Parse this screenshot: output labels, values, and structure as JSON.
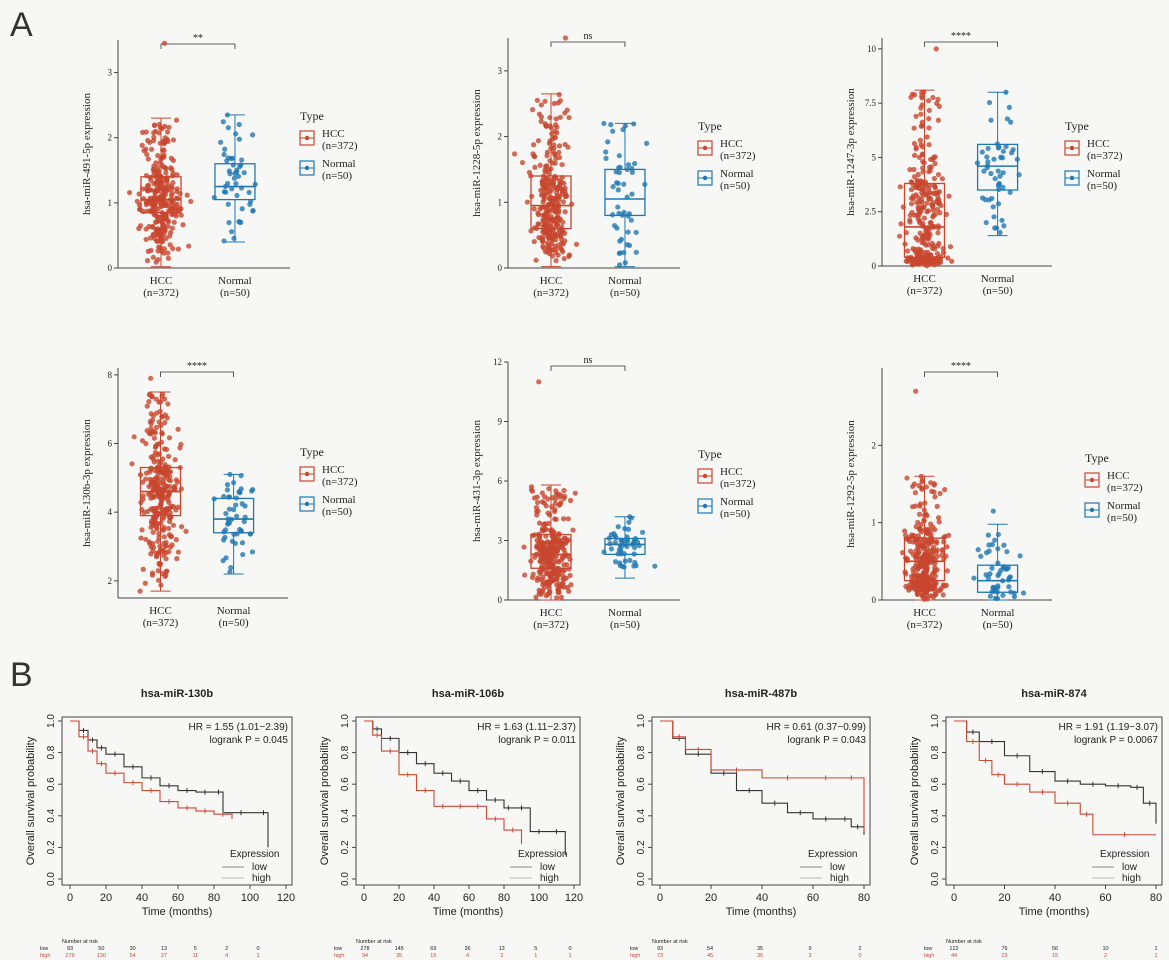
{
  "panels": {
    "a_label": "A",
    "b_label": "B"
  },
  "colors": {
    "hcc": "#c8462e",
    "normal": "#1f78b4",
    "low_curve": "#333333",
    "high_curve": "#cc4a36",
    "axis": "#444444"
  },
  "boxplot_common": {
    "legend_title": "Type",
    "legend_items": [
      {
        "label": "HCC",
        "n": "(n=372)"
      },
      {
        "label": "Normal",
        "n": "(n=50)"
      }
    ],
    "groups": [
      {
        "name": "HCC",
        "n": "(n=372)"
      },
      {
        "name": "Normal",
        "n": "(n=50)"
      }
    ]
  },
  "chart_data": [
    {
      "type": "box",
      "ylabel": "hsa-miR-491-5p expression",
      "ylim": [
        0,
        3.5
      ],
      "yticks": [
        0,
        1,
        2,
        3
      ],
      "significance": "**",
      "series": [
        {
          "name": "HCC",
          "q1": 0.85,
          "median": 1.05,
          "q3": 1.4,
          "whisker_low": 0.02,
          "whisker_high": 2.3,
          "max": 3.45
        },
        {
          "name": "Normal",
          "q1": 1.05,
          "median": 1.25,
          "q3": 1.6,
          "whisker_low": 0.4,
          "whisker_high": 2.35,
          "max": 2.35
        }
      ]
    },
    {
      "type": "box",
      "ylabel": "hsa-miR-1228-5p expression",
      "ylim": [
        0,
        3.5
      ],
      "yticks": [
        0,
        1,
        2,
        3
      ],
      "significance": "ns",
      "series": [
        {
          "name": "HCC",
          "q1": 0.6,
          "median": 0.95,
          "q3": 1.4,
          "whisker_low": 0.02,
          "whisker_high": 2.65,
          "max": 3.5
        },
        {
          "name": "Normal",
          "q1": 0.8,
          "median": 1.05,
          "q3": 1.5,
          "whisker_low": 0.02,
          "whisker_high": 2.2,
          "max": 2.2
        }
      ]
    },
    {
      "type": "box",
      "ylabel": "hsa-miR-1247-3p expression",
      "ylim": [
        0,
        10.5
      ],
      "yticks": [
        0.0,
        2.5,
        5.0,
        7.5,
        10.0
      ],
      "significance": "****",
      "series": [
        {
          "name": "HCC",
          "q1": 0.4,
          "median": 1.8,
          "q3": 3.8,
          "whisker_low": 0.0,
          "whisker_high": 8.1,
          "max": 10.0
        },
        {
          "name": "Normal",
          "q1": 3.5,
          "median": 4.6,
          "q3": 5.6,
          "whisker_low": 1.4,
          "whisker_high": 8.0,
          "max": 8.0
        }
      ]
    },
    {
      "type": "box",
      "ylabel": "hsa-miR-130b-3p expression",
      "ylim": [
        1.5,
        8.2
      ],
      "yticks": [
        2,
        4,
        6,
        8
      ],
      "significance": "****",
      "series": [
        {
          "name": "HCC",
          "q1": 3.9,
          "median": 4.6,
          "q3": 5.3,
          "whisker_low": 1.7,
          "whisker_high": 7.5,
          "max": 7.9
        },
        {
          "name": "Normal",
          "q1": 3.4,
          "median": 3.8,
          "q3": 4.4,
          "whisker_low": 2.2,
          "whisker_high": 5.1,
          "max": 5.1
        }
      ]
    },
    {
      "type": "box",
      "ylabel": "hsa-miR-431-3p expression",
      "ylim": [
        0,
        12
      ],
      "yticks": [
        0,
        3,
        6,
        9,
        12
      ],
      "significance": "ns",
      "series": [
        {
          "name": "HCC",
          "q1": 1.6,
          "median": 2.3,
          "q3": 3.3,
          "whisker_low": 0.0,
          "whisker_high": 5.8,
          "max": 11.0
        },
        {
          "name": "Normal",
          "q1": 2.3,
          "median": 2.8,
          "q3": 3.1,
          "whisker_low": 1.1,
          "whisker_high": 4.2,
          "max": 4.2
        }
      ]
    },
    {
      "type": "box",
      "ylabel": "hsa-miR-1292-5p expression",
      "ylim": [
        0,
        3
      ],
      "yticks": [
        0,
        1,
        2
      ],
      "significance": "****",
      "series": [
        {
          "name": "HCC",
          "q1": 0.25,
          "median": 0.5,
          "q3": 0.8,
          "whisker_low": 0.0,
          "whisker_high": 1.6,
          "max": 2.7
        },
        {
          "name": "Normal",
          "q1": 0.1,
          "median": 0.25,
          "q3": 0.45,
          "whisker_low": 0.0,
          "whisker_high": 0.98,
          "max": 1.15
        }
      ]
    },
    {
      "type": "line",
      "title": "hsa-miR-130b",
      "xlabel": "Time (months)",
      "ylabel": "Overall survival probability",
      "xlim": [
        0,
        120
      ],
      "xticks": [
        0,
        20,
        40,
        60,
        80,
        100,
        120
      ],
      "ylim": [
        0,
        1
      ],
      "yticks": [
        0.0,
        0.2,
        0.4,
        0.6,
        0.8,
        1.0
      ],
      "hr": "HR = 1.55 (1.01−2.39)",
      "logrank": "logrank P = 0.045",
      "legend_title": "Expression",
      "legend": [
        "low",
        "high"
      ],
      "series": [
        {
          "name": "low",
          "x": [
            0,
            5,
            10,
            15,
            20,
            30,
            40,
            50,
            60,
            70,
            80,
            85,
            105,
            110
          ],
          "y": [
            1.0,
            0.94,
            0.88,
            0.83,
            0.79,
            0.71,
            0.64,
            0.59,
            0.56,
            0.55,
            0.55,
            0.42,
            0.42,
            0.2
          ]
        },
        {
          "name": "high",
          "x": [
            0,
            5,
            10,
            15,
            20,
            30,
            40,
            50,
            60,
            70,
            80,
            90
          ],
          "y": [
            1.0,
            0.9,
            0.81,
            0.73,
            0.67,
            0.61,
            0.56,
            0.49,
            0.45,
            0.43,
            0.41,
            0.38
          ]
        }
      ],
      "risk_table": {
        "header": "Number at risk",
        "rows": [
          {
            "label": "low",
            "values": [
              "93",
              "50",
              "30",
              "13",
              "5",
              "2",
              "0"
            ]
          },
          {
            "label": "high",
            "values": [
              "279",
              "130",
              "54",
              "27",
              "11",
              "4",
              "1"
            ]
          }
        ]
      }
    },
    {
      "type": "line",
      "title": "hsa-miR-106b",
      "xlabel": "Time (months)",
      "ylabel": "Overall survival probability",
      "xlim": [
        0,
        120
      ],
      "xticks": [
        0,
        20,
        40,
        60,
        80,
        100,
        120
      ],
      "ylim": [
        0,
        1
      ],
      "yticks": [
        0.0,
        0.2,
        0.4,
        0.6,
        0.8,
        1.0
      ],
      "hr": "HR = 1.63 (1.11−2.37)",
      "logrank": "logrank P = 0.011",
      "legend_title": "Expression",
      "legend": [
        "low",
        "high"
      ],
      "series": [
        {
          "name": "low",
          "x": [
            0,
            5,
            10,
            20,
            30,
            40,
            50,
            60,
            70,
            80,
            85,
            95,
            105,
            115
          ],
          "y": [
            1.0,
            0.95,
            0.89,
            0.8,
            0.73,
            0.67,
            0.62,
            0.56,
            0.5,
            0.45,
            0.45,
            0.3,
            0.3,
            0.15
          ]
        },
        {
          "name": "high",
          "x": [
            0,
            5,
            10,
            20,
            30,
            40,
            50,
            60,
            70,
            80,
            90
          ],
          "y": [
            1.0,
            0.91,
            0.81,
            0.66,
            0.56,
            0.46,
            0.46,
            0.46,
            0.38,
            0.31,
            0.22
          ]
        }
      ],
      "risk_table": {
        "header": "Number at risk",
        "rows": [
          {
            "label": "low",
            "values": [
              "278",
              "145",
              "69",
              "36",
              "13",
              "5",
              "0"
            ]
          },
          {
            "label": "high",
            "values": [
              "94",
              "35",
              "15",
              "4",
              "3",
              "1",
              "1"
            ]
          }
        ]
      }
    },
    {
      "type": "line",
      "title": "hsa-miR-487b",
      "xlabel": "Time (months)",
      "ylabel": "Overall survival probability",
      "xlim": [
        0,
        80
      ],
      "xticks": [
        0,
        20,
        40,
        60,
        80
      ],
      "ylim": [
        0,
        1
      ],
      "yticks": [
        0.0,
        0.2,
        0.4,
        0.6,
        0.8,
        1.0
      ],
      "hr": "HR = 0.61 (0.37−0.99)",
      "logrank": "logrank P = 0.043",
      "legend_title": "Expression",
      "legend": [
        "low",
        "high"
      ],
      "series": [
        {
          "name": "low",
          "x": [
            0,
            5,
            10,
            20,
            30,
            40,
            50,
            60,
            70,
            75,
            80
          ],
          "y": [
            1.0,
            0.89,
            0.79,
            0.67,
            0.56,
            0.48,
            0.42,
            0.38,
            0.38,
            0.33,
            0.28
          ]
        },
        {
          "name": "high",
          "x": [
            0,
            5,
            10,
            20,
            40,
            60,
            70,
            80
          ],
          "y": [
            1.0,
            0.9,
            0.82,
            0.69,
            0.64,
            0.64,
            0.64,
            0.3
          ]
        }
      ],
      "risk_table": {
        "header": "Number at risk",
        "rows": [
          {
            "label": "low",
            "values": [
              "93",
              "54",
              "35",
              "9",
              "2"
            ]
          },
          {
            "label": "high",
            "values": [
              "73",
              "45",
              "36",
              "3",
              "0"
            ]
          }
        ]
      }
    },
    {
      "type": "line",
      "title": "hsa-miR-874",
      "xlabel": "Time (months)",
      "ylabel": "Overall survival probability",
      "xlim": [
        0,
        80
      ],
      "xticks": [
        0,
        20,
        40,
        60,
        80
      ],
      "ylim": [
        0,
        1
      ],
      "yticks": [
        0.0,
        0.2,
        0.4,
        0.6,
        0.8,
        1.0
      ],
      "hr": "HR = 1.91 (1.19−3.07)",
      "logrank": "logrank P = 0.0067",
      "legend_title": "Expression",
      "legend": [
        "low",
        "high"
      ],
      "series": [
        {
          "name": "low",
          "x": [
            0,
            5,
            10,
            20,
            30,
            40,
            50,
            60,
            70,
            75,
            80
          ],
          "y": [
            1.0,
            0.93,
            0.87,
            0.78,
            0.68,
            0.62,
            0.6,
            0.59,
            0.58,
            0.48,
            0.35
          ]
        },
        {
          "name": "high",
          "x": [
            0,
            5,
            10,
            15,
            20,
            30,
            40,
            50,
            55,
            80
          ],
          "y": [
            1.0,
            0.87,
            0.75,
            0.66,
            0.6,
            0.55,
            0.48,
            0.41,
            0.28,
            0.28
          ]
        }
      ],
      "risk_table": {
        "header": "Number at risk",
        "rows": [
          {
            "label": "low",
            "values": [
              "122",
              "76",
              "56",
              "10",
              "1"
            ]
          },
          {
            "label": "high",
            "values": [
              "44",
              "23",
              "15",
              "2",
              "1"
            ]
          }
        ]
      }
    }
  ]
}
